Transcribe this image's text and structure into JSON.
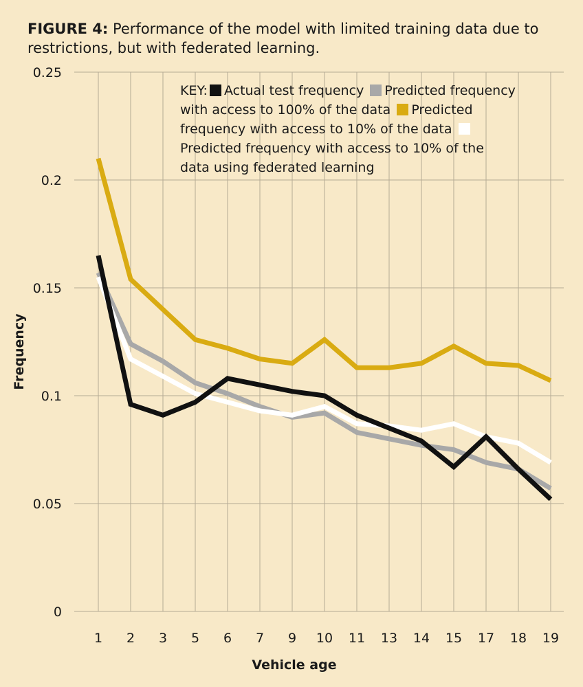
{
  "caption": {
    "figure_label": "FIGURE 4:",
    "text": " Performance of the model with limited training data due to restrictions, but with federated learning."
  },
  "key": {
    "prefix": "KEY:",
    "entries": [
      {
        "label": "Actual test frequency",
        "color": "#111111"
      },
      {
        "label": "Predicted frequency with access to 100% of the data",
        "color": "#a8a8a8"
      },
      {
        "label": "Predicted frequency with access to 10% of the data",
        "color": "#d9ab12"
      },
      {
        "label": "Predicted frequency with access to 10% of the data using federated learning",
        "color": "#ffffff"
      }
    ]
  },
  "chart_data": {
    "type": "line",
    "xlabel": "Vehicle age",
    "ylabel": "Frequency",
    "categories": [
      "1",
      "2",
      "3",
      "5",
      "6",
      "7",
      "9",
      "10",
      "11",
      "13",
      "14",
      "15",
      "17",
      "18",
      "19"
    ],
    "ylim": [
      0,
      0.25
    ],
    "yticks": [
      "0",
      "0.05",
      "0.1",
      "0.15",
      "0.2",
      "0.25"
    ],
    "grid": true,
    "legend": "top-right",
    "series": [
      {
        "name": "Predicted frequency with access to 10% of the data",
        "color": "#d9ab12",
        "values": [
          0.21,
          0.154,
          0.14,
          0.126,
          0.122,
          0.117,
          0.115,
          0.126,
          0.113,
          0.113,
          0.115,
          0.123,
          0.115,
          0.114,
          0.107
        ]
      },
      {
        "name": "Predicted frequency with access to 100% of the data",
        "color": "#a8a8a8",
        "values": [
          0.157,
          0.124,
          0.116,
          0.106,
          0.101,
          0.095,
          0.09,
          0.092,
          0.083,
          0.08,
          0.077,
          0.075,
          0.069,
          0.066,
          0.057
        ]
      },
      {
        "name": "Predicted frequency with access to 10% of the data using federated learning",
        "color": "#ffffff",
        "values": [
          0.155,
          0.117,
          0.109,
          0.101,
          0.097,
          0.093,
          0.091,
          0.095,
          0.087,
          0.086,
          0.084,
          0.087,
          0.081,
          0.078,
          0.069
        ]
      },
      {
        "name": "Actual test frequency",
        "color": "#111111",
        "values": [
          0.165,
          0.096,
          0.091,
          0.097,
          0.108,
          0.105,
          0.102,
          0.1,
          0.091,
          0.085,
          0.079,
          0.067,
          0.081,
          0.066,
          0.052
        ]
      }
    ]
  }
}
